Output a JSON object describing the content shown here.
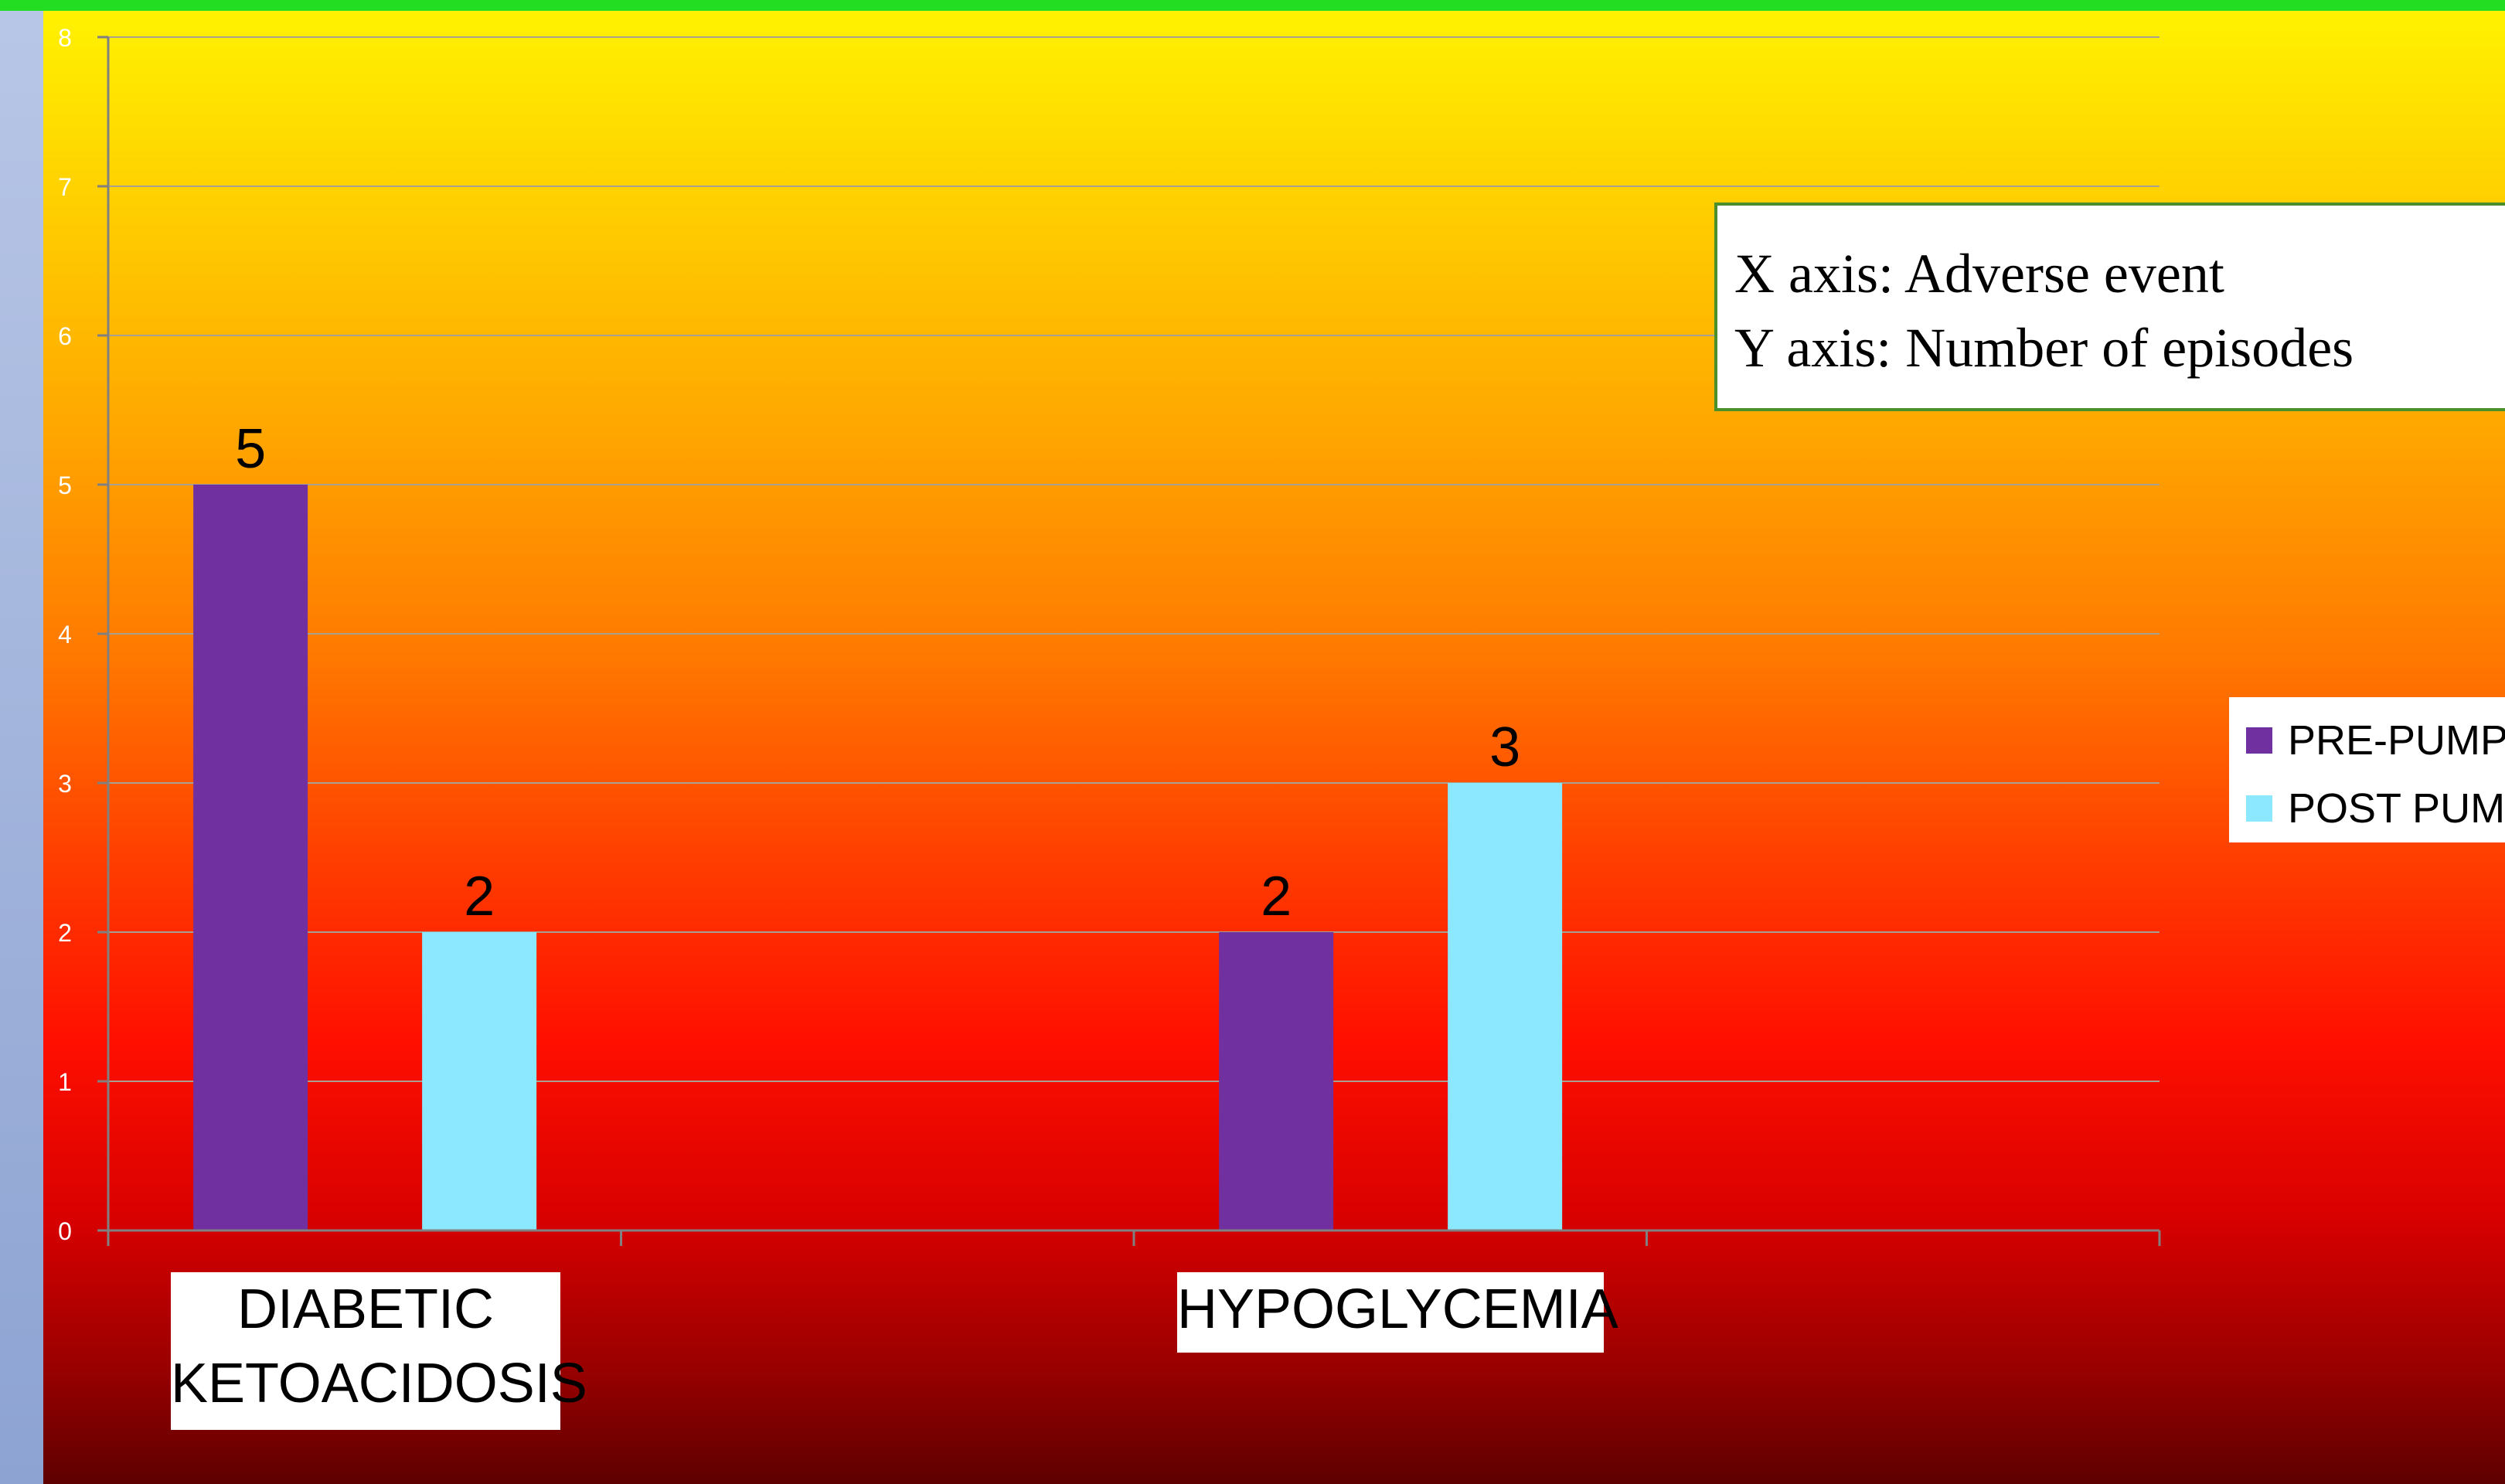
{
  "colors": {
    "pre_pump": "#7030a0",
    "post_pump": "#8ce8ff",
    "gridline": "#a8a090",
    "axis": "#808080",
    "tick_label": "#ffffff",
    "legend_border": "#4b8f2a"
  },
  "axis_note": {
    "x_line": "X axis: Adverse event",
    "y_line": "Y axis: Number of episodes"
  },
  "chart_data": {
    "type": "bar",
    "categories": [
      "DIABETIC KETOACIDOSIS",
      "HYPOGLYCEMIA"
    ],
    "category_lines": [
      [
        "DIABETIC",
        "KETOACIDOSIS"
      ],
      [
        "HYPOGLYCEMIA"
      ]
    ],
    "series": [
      {
        "name": "PRE-PUMP",
        "values": [
          5,
          2
        ]
      },
      {
        "name": "POST PUMP",
        "values": [
          2,
          3
        ]
      }
    ],
    "ylim": [
      0,
      8
    ],
    "yticks": [
      0,
      1,
      2,
      3,
      4,
      5,
      6,
      7,
      8
    ],
    "grid": true,
    "legend_position": "right",
    "data_labels": true
  }
}
